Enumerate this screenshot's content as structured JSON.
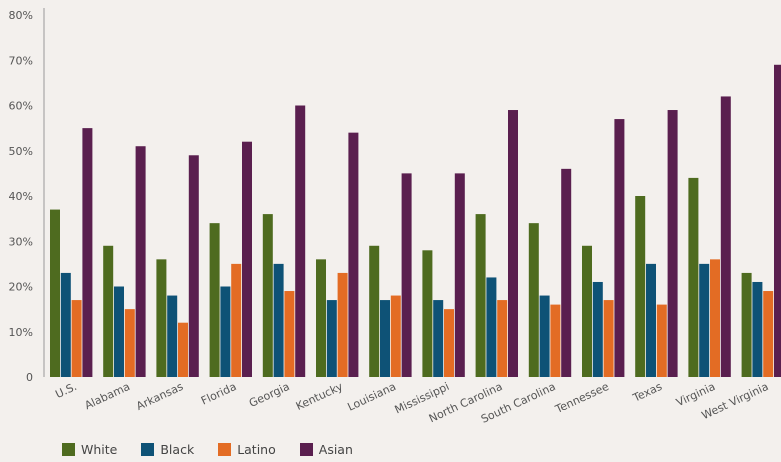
{
  "chart_data": {
    "type": "bar",
    "categories": [
      "U.S.",
      "Alabama",
      "Arkansas",
      "Florida",
      "Georgia",
      "Kentucky",
      "Louisiana",
      "Mississippi",
      "North Carolina",
      "South Carolina",
      "Tennessee",
      "Texas",
      "Virginia",
      "West Virginia"
    ],
    "series": [
      {
        "name": "White",
        "color": "#4e6b1f",
        "values": [
          37,
          29,
          26,
          34,
          36,
          26,
          29,
          28,
          36,
          34,
          29,
          40,
          44,
          23
        ]
      },
      {
        "name": "Black",
        "color": "#0e5276",
        "values": [
          23,
          20,
          18,
          20,
          25,
          17,
          17,
          17,
          22,
          18,
          21,
          25,
          25,
          21
        ]
      },
      {
        "name": "Latino",
        "color": "#e36c24",
        "values": [
          17,
          15,
          12,
          25,
          19,
          23,
          18,
          15,
          17,
          16,
          17,
          16,
          26,
          19
        ]
      },
      {
        "name": "Asian",
        "color": "#5a1f4f",
        "values": [
          55,
          51,
          49,
          52,
          60,
          54,
          45,
          45,
          59,
          46,
          57,
          59,
          62,
          69
        ]
      }
    ],
    "y_ticks": [
      "0",
      "10%",
      "20%",
      "30%",
      "40%",
      "50%",
      "60%",
      "70%",
      "80%"
    ],
    "ylim": [
      0,
      80
    ],
    "grid": false,
    "legend_position": "bottom-left",
    "title": "",
    "xlabel": "",
    "ylabel": ""
  }
}
